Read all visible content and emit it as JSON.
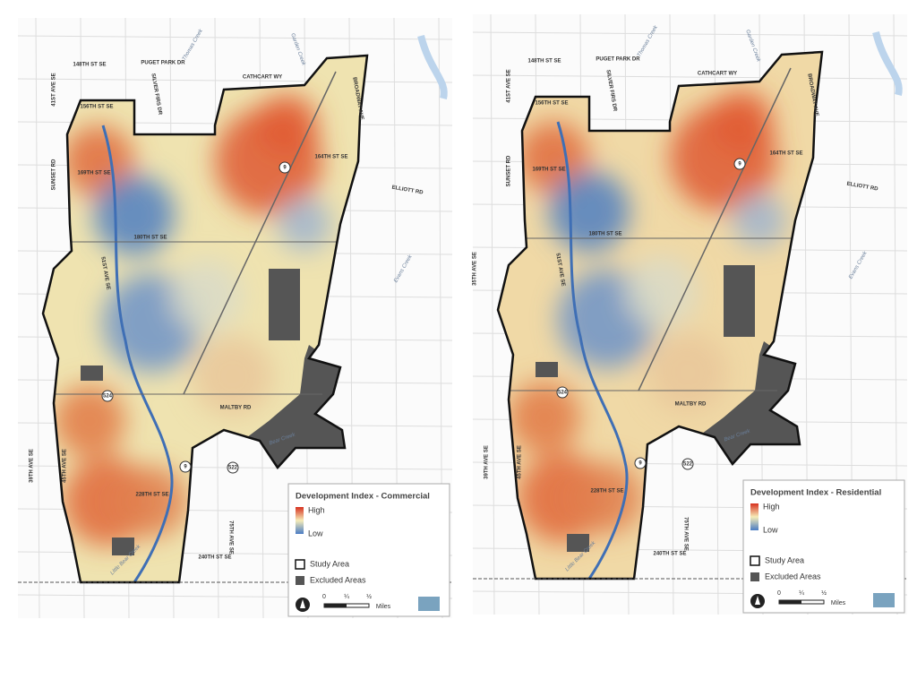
{
  "maps": [
    {
      "labels": [
        "148TH ST SE",
        "PUGET PARK DR",
        "CATHCART WY",
        "41ST AVE SE",
        "SILVER FIRS DR",
        "156TH ST SE",
        "164TH ST SE",
        "169TH ST SE",
        "SUNSET RD",
        "ELLIOTT RD",
        "BROADWAY AVE",
        "180TH ST SE",
        "51ST AVE SE",
        "MALTBY RD",
        "39TH AVE SE",
        "45TH AVE SE",
        "228TH ST SE",
        "240TH ST SE",
        "75TH AVE SE",
        "Little Bear Creek",
        "Bear Creek",
        "Thomas Creek",
        "Garden Creek",
        "Evans Creek",
        "9",
        "524",
        "522",
        "9"
      ],
      "legend": {
        "title": "Development Index - Commercial",
        "high": "High",
        "low": "Low",
        "study_area": "Study Area",
        "excluded_areas": "Excluded Areas",
        "scale": [
          "0",
          "¼",
          "½"
        ],
        "scale_unit": "Miles"
      }
    },
    {
      "labels": [
        "148TH ST SE",
        "PUGET PARK DR",
        "CATHCART WY",
        "41ST AVE SE",
        "SILVER FIRS DR",
        "156TH ST SE",
        "164TH ST SE",
        "169TH ST SE",
        "SUNSET RD",
        "ELLIOTT RD",
        "BROADWAY AVE",
        "180TH ST SE",
        "51ST AVE SE",
        "MALTBY RD",
        "39TH AVE SE",
        "45TH AVE SE",
        "228TH ST SE",
        "240TH ST SE",
        "75TH AVE SE",
        "Little Bear Creek",
        "Bear Creek",
        "Thomas Creek",
        "Garden Creek",
        "Evans Creek",
        "9",
        "524",
        "522",
        "9",
        "35TH AVE SE"
      ],
      "legend": {
        "title": "Development Index - Residential",
        "high": "High",
        "low": "Low",
        "study_area": "Study Area",
        "excluded_areas": "Excluded Areas",
        "scale": [
          "0",
          "¼",
          "½"
        ],
        "scale_unit": "Miles"
      }
    }
  ]
}
